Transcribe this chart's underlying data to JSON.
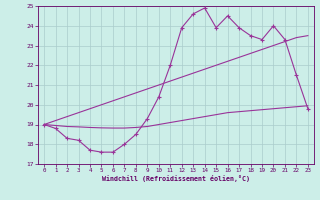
{
  "xlabel": "Windchill (Refroidissement éolien,°C)",
  "background_color": "#cceee8",
  "grid_color": "#aacccc",
  "line_color": "#993399",
  "hours": [
    0,
    1,
    2,
    3,
    4,
    5,
    6,
    7,
    8,
    9,
    10,
    11,
    12,
    13,
    14,
    15,
    16,
    17,
    18,
    19,
    20,
    21,
    22,
    23
  ],
  "curve1": [
    19.0,
    18.8,
    18.3,
    18.2,
    17.7,
    17.6,
    17.6,
    18.0,
    18.5,
    19.3,
    20.4,
    22.0,
    23.9,
    24.6,
    24.9,
    23.9,
    24.5,
    23.9,
    23.5,
    23.3,
    24.0,
    23.3,
    21.5,
    19.8
  ],
  "trend_steep": [
    19.0,
    19.2,
    19.4,
    19.6,
    19.8,
    20.0,
    20.2,
    20.4,
    20.6,
    20.8,
    21.0,
    21.2,
    21.4,
    21.6,
    21.8,
    22.0,
    22.2,
    22.4,
    22.6,
    22.8,
    23.0,
    23.2,
    23.4,
    23.5
  ],
  "trend_shallow": [
    19.0,
    18.95,
    18.9,
    18.88,
    18.85,
    18.83,
    18.82,
    18.82,
    18.85,
    18.9,
    19.0,
    19.1,
    19.2,
    19.3,
    19.4,
    19.5,
    19.6,
    19.65,
    19.7,
    19.75,
    19.8,
    19.85,
    19.9,
    19.95
  ],
  "ylim": [
    17,
    25
  ],
  "xlim_min": -0.5,
  "xlim_max": 23.5,
  "yticks": [
    17,
    18,
    19,
    20,
    21,
    22,
    23,
    24,
    25
  ],
  "xticks": [
    0,
    1,
    2,
    3,
    4,
    5,
    6,
    7,
    8,
    9,
    10,
    11,
    12,
    13,
    14,
    15,
    16,
    17,
    18,
    19,
    20,
    21,
    22,
    23
  ]
}
